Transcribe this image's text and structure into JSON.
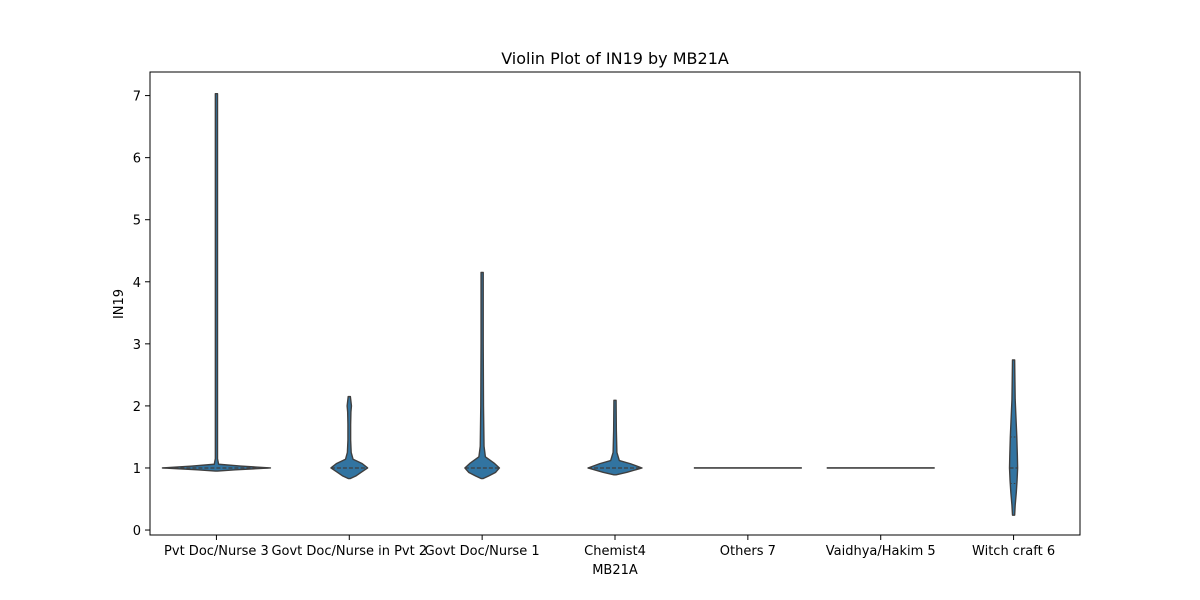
{
  "chart_data": {
    "type": "violin",
    "title": "Violin Plot of IN19 by MB21A",
    "xlabel": "MB21A",
    "ylabel": "IN19",
    "ylim": [
      -0.08,
      7.38
    ],
    "yticks": [
      0,
      1,
      2,
      3,
      4,
      5,
      6,
      7
    ],
    "grid": false,
    "colors": {
      "fill": "#3274a1",
      "edge": "#3f3f3f",
      "axes": "#000000"
    },
    "categories": [
      "Pvt Doc/Nurse 3",
      "Govt Doc/Nurse in Pvt 2",
      "Govt Doc/Nurse 1",
      "Chemist4",
      "Others 7",
      "Vaidhya/Hakim 5",
      "Witch craft 6"
    ],
    "violins": [
      {
        "range": [
          0.95,
          7.03
        ],
        "median": 1,
        "q1": 1,
        "q3": 1,
        "density": [
          [
            0.95,
            0.02
          ],
          [
            0.97,
            0.35
          ],
          [
            1.0,
            1.0
          ],
          [
            1.03,
            0.45
          ],
          [
            1.06,
            0.04
          ],
          [
            1.15,
            0.02
          ],
          [
            2.0,
            0.02
          ],
          [
            7.03,
            0.02
          ]
        ]
      },
      {
        "range": [
          0.83,
          2.15
        ],
        "median": 1,
        "q1": 1,
        "q3": 1,
        "density": [
          [
            0.83,
            0.02
          ],
          [
            0.87,
            0.12
          ],
          [
            0.93,
            0.22
          ],
          [
            1.0,
            0.34
          ],
          [
            1.07,
            0.24
          ],
          [
            1.14,
            0.07
          ],
          [
            1.25,
            0.035
          ],
          [
            1.45,
            0.025
          ],
          [
            1.7,
            0.025
          ],
          [
            1.9,
            0.03
          ],
          [
            2.0,
            0.04
          ],
          [
            2.15,
            0.02
          ]
        ]
      },
      {
        "range": [
          0.83,
          4.15
        ],
        "median": 1,
        "q1": 1,
        "q3": 1,
        "density": [
          [
            0.83,
            0.02
          ],
          [
            0.87,
            0.12
          ],
          [
            0.93,
            0.25
          ],
          [
            1.0,
            0.32
          ],
          [
            1.08,
            0.22
          ],
          [
            1.18,
            0.06
          ],
          [
            1.35,
            0.035
          ],
          [
            2.0,
            0.025
          ],
          [
            3.0,
            0.02
          ],
          [
            4.15,
            0.02
          ]
        ]
      },
      {
        "range": [
          0.89,
          2.09
        ],
        "median": 1,
        "q1": 1,
        "q3": 1,
        "density": [
          [
            0.89,
            0.02
          ],
          [
            0.93,
            0.22
          ],
          [
            1.0,
            0.5
          ],
          [
            1.07,
            0.28
          ],
          [
            1.12,
            0.08
          ],
          [
            1.25,
            0.035
          ],
          [
            1.6,
            0.025
          ],
          [
            2.09,
            0.02
          ]
        ]
      },
      {
        "range": [
          1.0,
          1.0
        ],
        "median": 1,
        "q1": 1,
        "q3": 1,
        "density": [
          [
            1.0,
            1.0
          ]
        ]
      },
      {
        "range": [
          1.0,
          1.0
        ],
        "median": 1,
        "q1": 1,
        "q3": 1,
        "density": [
          [
            1.0,
            1.0
          ]
        ]
      },
      {
        "range": [
          0.24,
          2.74
        ],
        "median": 1,
        "q1": 0.75,
        "q3": 1.5,
        "density": [
          [
            0.24,
            0.02
          ],
          [
            0.4,
            0.03
          ],
          [
            0.6,
            0.05
          ],
          [
            0.8,
            0.065
          ],
          [
            1.0,
            0.075
          ],
          [
            1.2,
            0.07
          ],
          [
            1.5,
            0.06
          ],
          [
            1.8,
            0.045
          ],
          [
            2.1,
            0.03
          ],
          [
            2.4,
            0.025
          ],
          [
            2.74,
            0.02
          ]
        ]
      }
    ]
  }
}
